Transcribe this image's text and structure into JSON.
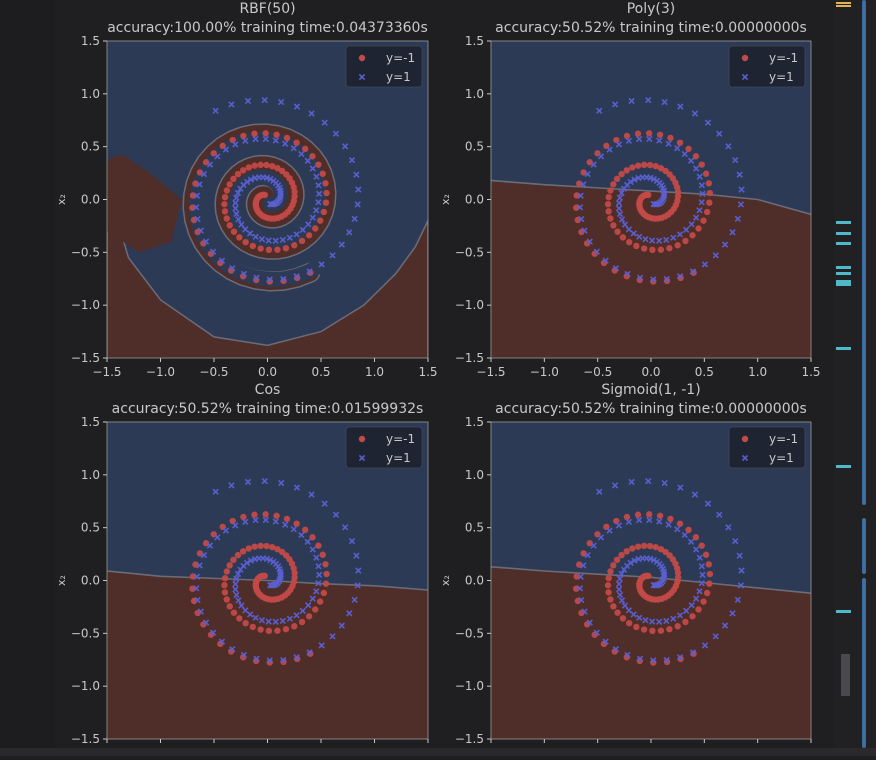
{
  "colors": {
    "background": "#1f1f21",
    "class_neg_region": "#4f2d29",
    "class_pos_region": "#2d3a55",
    "boundary": "#6b6c79",
    "neg_point": "#c24a48",
    "pos_point": "#5a5fd0",
    "text": "#c8c8c8",
    "legend_bg": "#1e2230",
    "scroll_mark": "#4fb9c9",
    "scroll_mark_top": "#e0b450",
    "scroll_thumb": "#3d6ea3"
  },
  "editor": {
    "scroll_markers": [
      {
        "name": "scroll-marker-top",
        "color": "#e0b450"
      },
      {
        "name": "scroll-marker",
        "color": "#4fb9c9"
      }
    ]
  },
  "chart_data": [
    {
      "type": "scatter",
      "title": "RBF(50)",
      "subtitle": "accuracy:100.00%  training time:0.04373360s",
      "ylabel": "x₂",
      "xlim": [
        -1.5,
        1.5
      ],
      "ylim": [
        -1.5,
        1.5
      ],
      "xticks": [
        "−1.5",
        "−1.0",
        "−0.5",
        "0.0",
        "0.5",
        "1.0",
        "1.5"
      ],
      "yticks": [
        "1.5",
        "1.0",
        "0.5",
        "0.0",
        "−0.5",
        "−1.0",
        "−1.5"
      ],
      "legend": [
        "y=-1",
        "y=1"
      ],
      "legend_position": "top-right",
      "decision": "spiral"
    },
    {
      "type": "scatter",
      "title": "Poly(3)",
      "subtitle": "accuracy:50.52%  training time:0.00000000s",
      "ylabel": "x₂",
      "xlim": [
        -1.5,
        1.5
      ],
      "ylim": [
        -1.5,
        1.5
      ],
      "xticks": [
        "−1.5",
        "−1.0",
        "−0.5",
        "0.0",
        "0.5",
        "1.0",
        "1.5"
      ],
      "yticks": [
        "1.5",
        "1.0",
        "0.5",
        "0.0",
        "−0.5",
        "−1.0",
        "−1.5"
      ],
      "legend": [
        "y=-1",
        "y=1"
      ],
      "legend_position": "top-right",
      "decision": "linear",
      "boundary_line": [
        [
          -1.5,
          0.18
        ],
        [
          -1.0,
          0.14
        ],
        [
          -0.5,
          0.11
        ],
        [
          0.0,
          0.08
        ],
        [
          0.5,
          0.05
        ],
        [
          1.0,
          0.0
        ],
        [
          1.5,
          -0.14
        ]
      ]
    },
    {
      "type": "scatter",
      "title": "Cos",
      "subtitle": "accuracy:50.52%  training time:0.01599932s",
      "ylabel": "x₂",
      "xlim": [
        -1.5,
        1.5
      ],
      "ylim": [
        -1.5,
        1.5
      ],
      "xticks": [
        "",
        "",
        "",
        "",
        "",
        "",
        ""
      ],
      "yticks": [
        "1.5",
        "1.0",
        "0.5",
        "0.0",
        "−0.5",
        "−1.0",
        "−1.5"
      ],
      "legend": [
        "y=-1",
        "y=1"
      ],
      "legend_position": "top-right",
      "decision": "linear",
      "boundary_line": [
        [
          -1.5,
          0.09
        ],
        [
          -1.0,
          0.04
        ],
        [
          -0.5,
          0.02
        ],
        [
          0.0,
          0.0
        ],
        [
          0.5,
          -0.03
        ],
        [
          1.0,
          -0.05
        ],
        [
          1.5,
          -0.09
        ]
      ]
    },
    {
      "type": "scatter",
      "title": "Sigmoid(1, -1)",
      "subtitle": "accuracy:50.52%  training time:0.00000000s",
      "ylabel": "x₂",
      "xlim": [
        -1.5,
        1.5
      ],
      "ylim": [
        -1.5,
        1.5
      ],
      "xticks": [
        "",
        "",
        "",
        "",
        "",
        "",
        ""
      ],
      "yticks": [
        "1.5",
        "1.0",
        "0.5",
        "0.0",
        "−0.5",
        "−1.0",
        "−1.5"
      ],
      "legend": [
        "y=-1",
        "y=1"
      ],
      "legend_position": "top-right",
      "decision": "linear",
      "boundary_line": [
        [
          -1.5,
          0.13
        ],
        [
          -1.0,
          0.09
        ],
        [
          -0.5,
          0.06
        ],
        [
          0.0,
          0.03
        ],
        [
          0.5,
          -0.02
        ],
        [
          1.0,
          -0.07
        ],
        [
          1.5,
          -0.12
        ]
      ]
    }
  ],
  "spiral_data": {
    "class_neg": {
      "name": "y=-1",
      "marker": "circle",
      "r_start": 0.05,
      "r_end": 0.8,
      "angle_start_deg": 120,
      "angle_end_deg": 1020,
      "points": 96
    },
    "class_pos": {
      "name": "y=1",
      "marker": "x",
      "r_start": 0.05,
      "r_end": 0.97,
      "angle_start_deg": 300,
      "angle_end_deg": 1200,
      "points": 96
    }
  }
}
